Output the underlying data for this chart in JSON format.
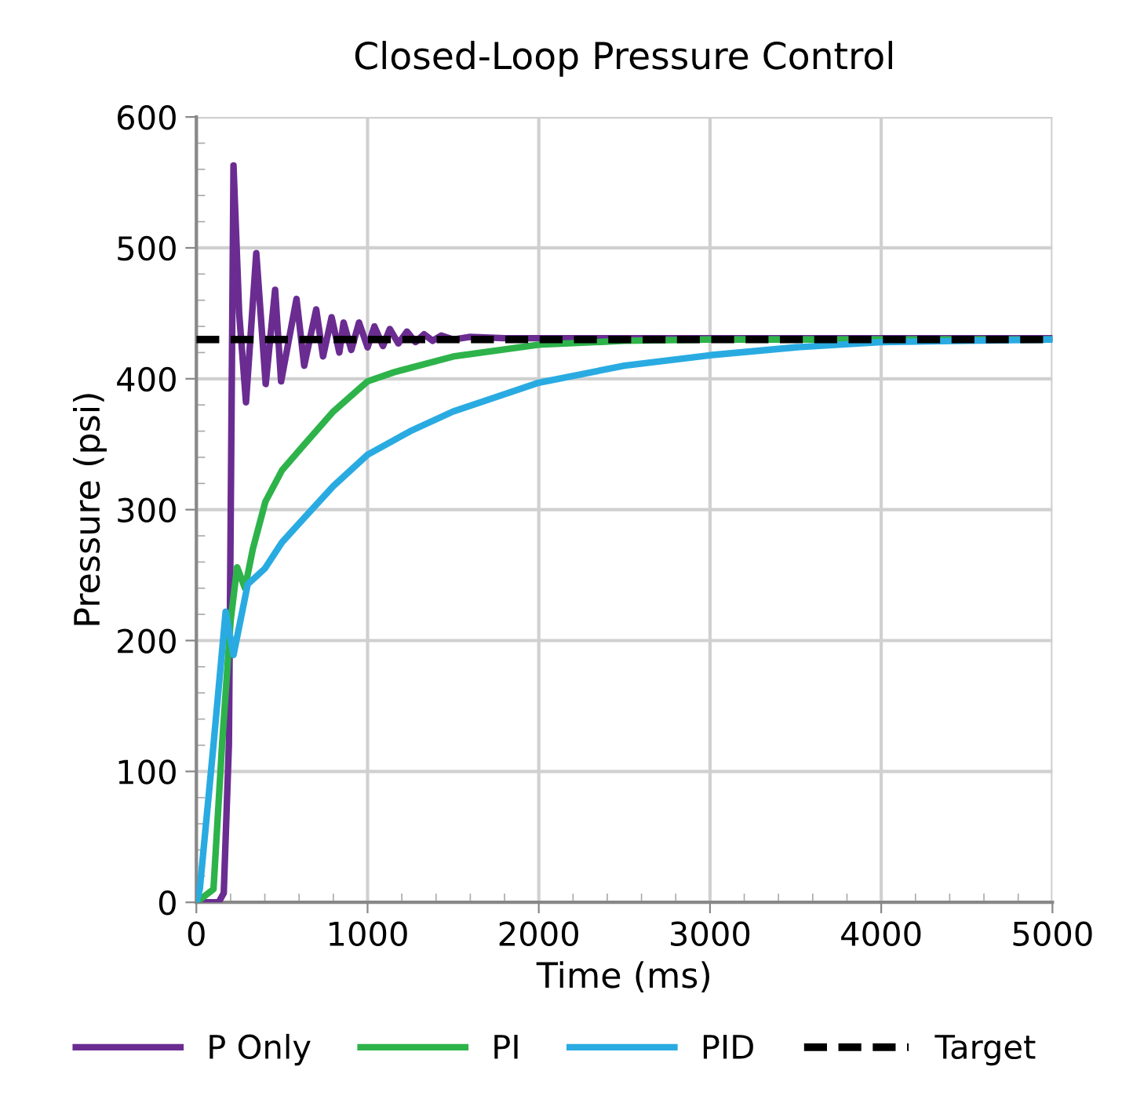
{
  "chart_data": {
    "type": "line",
    "title": "Closed-Loop Pressure Control",
    "xlabel": "Time (ms)",
    "ylabel": "Pressure (psi)",
    "xlim": [
      0,
      5000
    ],
    "xticks": [
      0,
      1000,
      2000,
      3000,
      4000,
      5000
    ],
    "ylim": [
      0,
      600
    ],
    "yticks": [
      0,
      100,
      200,
      300,
      400,
      500,
      600
    ],
    "grid": true,
    "legend": "bottom",
    "marker": "none",
    "series": [
      {
        "name": "P Only",
        "color": "#6a2c91",
        "line_style": "solid",
        "x": [
          0,
          130,
          160,
          190,
          217,
          250,
          290,
          350,
          405,
          460,
          495,
          585,
          630,
          700,
          740,
          790,
          835,
          860,
          905,
          950,
          1000,
          1040,
          1090,
          1130,
          1180,
          1230,
          1280,
          1330,
          1380,
          1430,
          1500,
          1600,
          1800,
          2000,
          5000
        ],
        "values": [
          0,
          0,
          7,
          120,
          563,
          450,
          382,
          496,
          396,
          468,
          398,
          461,
          410,
          453,
          417,
          447,
          420,
          443,
          422,
          443,
          424,
          440,
          425,
          438,
          427,
          436,
          428,
          434,
          429,
          433,
          430,
          432,
          431,
          431,
          431
        ]
      },
      {
        "name": "PI",
        "color": "#2db34a",
        "line_style": "solid",
        "x": [
          0,
          50,
          100,
          150,
          200,
          238,
          284,
          330,
          403,
          500,
          632,
          800,
          1000,
          1154,
          1500,
          2000,
          2500,
          3000,
          4000,
          5000
        ],
        "values": [
          0,
          5,
          10,
          120,
          215,
          256,
          240,
          270,
          306,
          330,
          350,
          375,
          398,
          405,
          417,
          426,
          429,
          430,
          430,
          430
        ]
      },
      {
        "name": "PID",
        "color": "#29abe2",
        "line_style": "solid",
        "x": [
          0,
          20,
          100,
          171,
          217,
          300,
          400,
          500,
          632,
          800,
          1000,
          1250,
          1500,
          2000,
          2500,
          3000,
          3500,
          4000,
          4500,
          5000
        ],
        "values": [
          0,
          10,
          120,
          222,
          189,
          243,
          255,
          275,
          294,
          318,
          342,
          360,
          375,
          397,
          410,
          418,
          424,
          428,
          429,
          430
        ]
      },
      {
        "name": "Target",
        "color": "#000000",
        "line_style": "dashed",
        "x": [
          0,
          5000
        ],
        "values": [
          430,
          430
        ]
      }
    ]
  }
}
